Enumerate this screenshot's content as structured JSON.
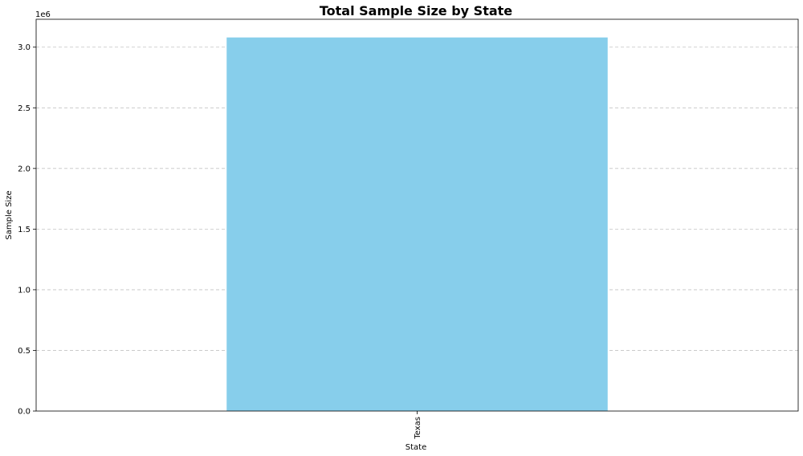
{
  "chart_data": {
    "type": "bar",
    "title": "Total Sample Size by State",
    "xlabel": "State",
    "ylabel": "Sample Size",
    "y_offset_label": "1e6",
    "categories": [
      "Texas"
    ],
    "values": [
      3080000
    ],
    "ylim": [
      0,
      3230000
    ],
    "yticks": [
      0,
      500000,
      1000000,
      1500000,
      2000000,
      2500000,
      3000000
    ],
    "ytick_labels": [
      "0.0",
      "0.5",
      "1.0",
      "1.5",
      "2.0",
      "2.5",
      "3.0"
    ],
    "grid": "y-dashed",
    "bar_color": "#87ceeb",
    "legend": "none"
  }
}
